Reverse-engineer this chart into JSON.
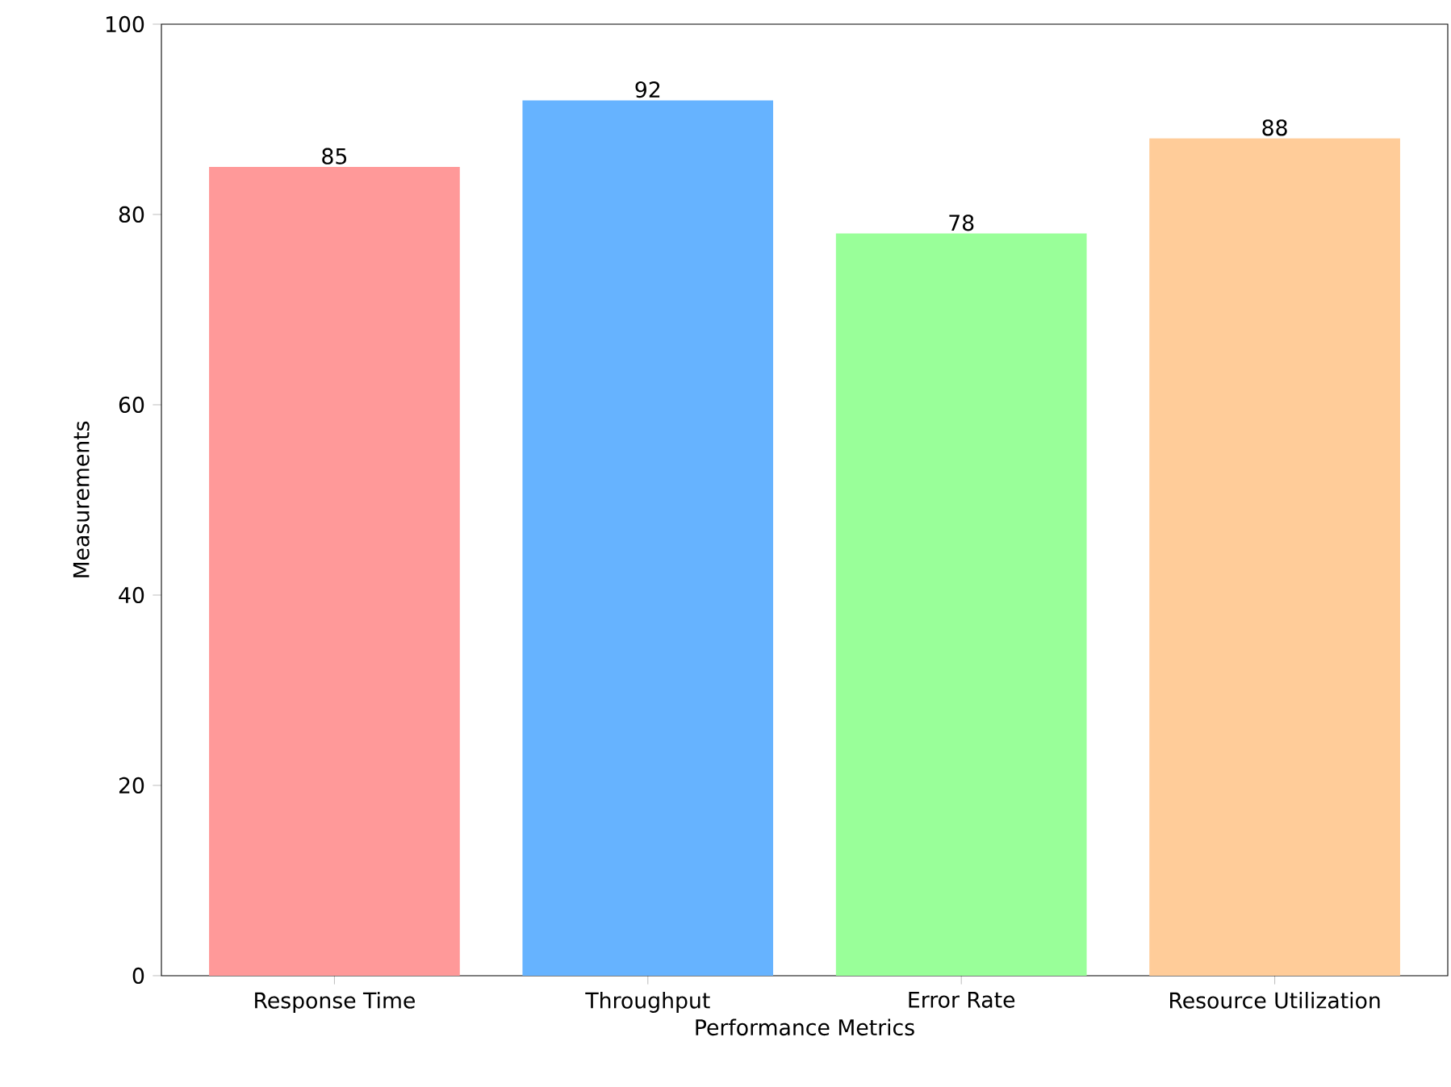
{
  "chart_data": {
    "type": "bar",
    "xlabel": "Performance Metrics",
    "ylabel": "Measurements",
    "categories": [
      "Response Time",
      "Throughput",
      "Error Rate",
      "Resource Utilization"
    ],
    "values": [
      85,
      92,
      78,
      88
    ],
    "colors": [
      "#ff9999",
      "#66b3ff",
      "#99ff99",
      "#ffcc99"
    ],
    "ylim": [
      0,
      100
    ],
    "yticks": [
      0,
      20,
      40,
      60,
      80,
      100
    ],
    "data_labels": true
  }
}
